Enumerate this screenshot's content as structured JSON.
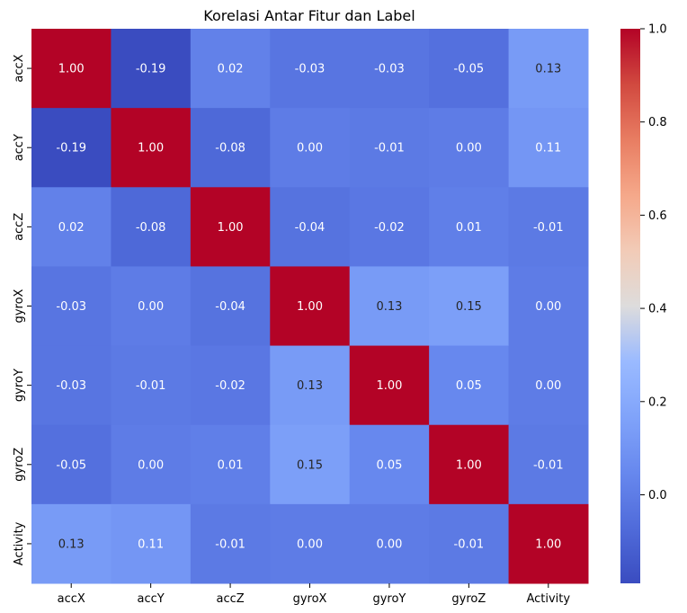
{
  "chart_data": {
    "type": "heatmap",
    "title": "Korelasi Antar Fitur dan Label",
    "xlabel": "",
    "ylabel": "",
    "x_labels": [
      "accX",
      "accY",
      "accZ",
      "gyroX",
      "gyroY",
      "gyroZ",
      "Activity"
    ],
    "y_labels": [
      "accX",
      "accY",
      "accZ",
      "gyroX",
      "gyroY",
      "gyroZ",
      "Activity"
    ],
    "values": [
      [
        1.0,
        -0.19,
        0.02,
        -0.03,
        -0.03,
        -0.05,
        0.13
      ],
      [
        -0.19,
        1.0,
        -0.08,
        -0.0,
        -0.01,
        -0.0,
        0.11
      ],
      [
        0.02,
        -0.08,
        1.0,
        -0.04,
        -0.02,
        0.01,
        -0.01
      ],
      [
        -0.03,
        -0.0,
        -0.04,
        1.0,
        0.13,
        0.15,
        0.0
      ],
      [
        -0.03,
        -0.01,
        -0.02,
        0.13,
        1.0,
        0.05,
        -0.0
      ],
      [
        -0.05,
        -0.0,
        0.01,
        0.15,
        0.05,
        1.0,
        -0.01
      ],
      [
        0.13,
        0.11,
        -0.01,
        0.0,
        -0.0,
        -0.01,
        1.0
      ]
    ],
    "annotation_format": "0.00",
    "colormap": "coolwarm",
    "color_range": [
      -0.19,
      1.0
    ],
    "colorbar_ticks": [
      "0.0",
      "0.2",
      "0.4",
      "0.6",
      "0.8",
      "1.0"
    ],
    "colorbar_tick_values": [
      0.0,
      0.2,
      0.4,
      0.6,
      0.8,
      1.0
    ],
    "grid": false
  }
}
